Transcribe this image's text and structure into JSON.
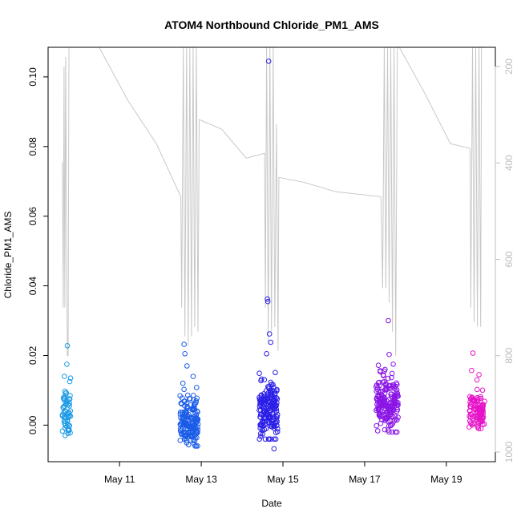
{
  "chart_data": {
    "type": "scatter",
    "title": "ATOM4 Northbound Chloride_PM1_AMS",
    "xlabel": "Date",
    "ylabel": "Chloride_PM1_AMS",
    "x_ticks": [
      "May 11",
      "May 13",
      "May 15",
      "May 17",
      "May 19"
    ],
    "x_tick_days": [
      11,
      13,
      15,
      17,
      19
    ],
    "xlim_days": [
      9.25,
      20.2
    ],
    "ylim": [
      -0.0105,
      0.1085
    ],
    "y_ticks": [
      0.0,
      0.02,
      0.04,
      0.06,
      0.08,
      0.1
    ],
    "y_tick_labels": [
      "0.00",
      "0.02",
      "0.04",
      "0.06",
      "0.08",
      "0.10"
    ],
    "right_axis": {
      "label_color": "#bdbdbd",
      "reversed": true,
      "ylim": [
        1020,
        160
      ],
      "ticks": [
        200,
        400,
        600,
        800,
        1000
      ],
      "tick_labels": [
        "200",
        "400",
        "600",
        "800",
        "1000"
      ]
    },
    "point_style": "open-circle",
    "secondary_line_color": "#c8c8c8",
    "series": [
      {
        "color": "#1e9be6",
        "x_center": 9.7,
        "x_spread": 0.1,
        "y_center": 0.004,
        "y_spread": 0.007,
        "n": 60,
        "extra_points": [
          [
            9.72,
            0.0228
          ],
          [
            9.71,
            0.0175
          ],
          [
            9.65,
            0.014
          ],
          [
            9.8,
            0.0135
          ],
          [
            9.78,
            0.0125
          ]
        ]
      },
      {
        "color": "#1a5ce8",
        "x_center": 12.7,
        "x_spread": 0.22,
        "y_center": 0.001,
        "y_spread": 0.007,
        "n": 170,
        "extra_points": [
          [
            12.58,
            0.0232
          ],
          [
            12.6,
            0.0205
          ],
          [
            12.65,
            0.017
          ],
          [
            12.8,
            0.014
          ],
          [
            12.55,
            0.012
          ]
        ]
      },
      {
        "color": "#2a1ee8",
        "x_center": 14.65,
        "x_spread": 0.23,
        "y_center": 0.004,
        "y_spread": 0.008,
        "n": 180,
        "extra_points": [
          [
            14.65,
            0.1045
          ],
          [
            14.62,
            0.0362
          ],
          [
            14.63,
            0.0355
          ],
          [
            14.67,
            0.0262
          ],
          [
            14.7,
            0.0238
          ],
          [
            14.6,
            0.0205
          ],
          [
            14.78,
            -0.0068
          ]
        ]
      },
      {
        "color": "#8a14e6",
        "x_center": 17.55,
        "x_spread": 0.27,
        "y_center": 0.006,
        "y_spread": 0.008,
        "n": 190,
        "extra_points": [
          [
            17.58,
            0.03
          ],
          [
            17.6,
            0.0203
          ],
          [
            17.7,
            0.0175
          ],
          [
            17.5,
            0.016
          ]
        ]
      },
      {
        "color": "#e614c8",
        "x_center": 19.75,
        "x_spread": 0.19,
        "y_center": 0.004,
        "y_spread": 0.005,
        "n": 110,
        "extra_points": [
          [
            19.65,
            0.0207
          ],
          [
            19.62,
            0.0157
          ],
          [
            19.8,
            0.0145
          ],
          [
            19.75,
            0.013
          ]
        ]
      }
    ],
    "altitude_trace": [
      [
        9.58,
        400
      ],
      [
        9.6,
        400
      ],
      [
        9.62,
        700
      ],
      [
        9.64,
        200
      ],
      [
        9.66,
        700
      ],
      [
        9.68,
        180
      ],
      [
        9.72,
        800
      ],
      [
        9.74,
        800
      ],
      [
        9.76,
        150
      ],
      [
        10.5,
        150
      ],
      [
        11.2,
        270
      ],
      [
        11.9,
        360
      ],
      [
        12.5,
        470
      ],
      [
        12.52,
        700
      ],
      [
        12.56,
        150
      ],
      [
        12.6,
        760
      ],
      [
        12.64,
        150
      ],
      [
        12.68,
        780
      ],
      [
        12.72,
        150
      ],
      [
        12.76,
        760
      ],
      [
        12.8,
        150
      ],
      [
        12.84,
        740
      ],
      [
        12.88,
        150
      ],
      [
        12.92,
        750
      ],
      [
        12.95,
        310
      ],
      [
        13.5,
        330
      ],
      [
        14.1,
        390
      ],
      [
        14.55,
        380
      ],
      [
        14.57,
        700
      ],
      [
        14.6,
        150
      ],
      [
        14.64,
        770
      ],
      [
        14.68,
        150
      ],
      [
        14.72,
        750
      ],
      [
        14.76,
        150
      ],
      [
        14.8,
        740
      ],
      [
        14.84,
        320
      ],
      [
        14.88,
        790
      ],
      [
        14.9,
        430
      ],
      [
        15.5,
        440
      ],
      [
        16.3,
        460
      ],
      [
        17.4,
        470
      ],
      [
        17.44,
        660
      ],
      [
        17.48,
        150
      ],
      [
        17.52,
        660
      ],
      [
        17.56,
        150
      ],
      [
        17.6,
        690
      ],
      [
        17.64,
        150
      ],
      [
        17.68,
        750
      ],
      [
        17.72,
        150
      ],
      [
        17.76,
        800
      ],
      [
        17.8,
        150
      ],
      [
        17.85,
        150
      ],
      [
        18.5,
        260
      ],
      [
        19.1,
        360
      ],
      [
        19.58,
        370
      ],
      [
        19.6,
        700
      ],
      [
        19.64,
        150
      ],
      [
        19.68,
        730
      ],
      [
        19.72,
        150
      ],
      [
        19.76,
        740
      ],
      [
        19.8,
        150
      ],
      [
        19.84,
        740
      ],
      [
        19.86,
        150
      ]
    ]
  }
}
